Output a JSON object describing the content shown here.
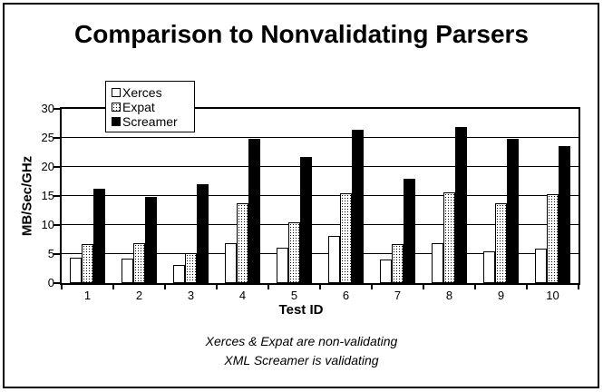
{
  "chart_data": {
    "type": "bar",
    "title": "Comparison to Nonvalidating Parsers",
    "categories": [
      "1",
      "2",
      "3",
      "4",
      "5",
      "6",
      "7",
      "8",
      "9",
      "10"
    ],
    "series": [
      {
        "name": "Xerces",
        "fill": "white",
        "values": [
          4.4,
          4.2,
          3.1,
          6.8,
          6.1,
          8.1,
          4.0,
          6.9,
          5.5,
          6.0
        ]
      },
      {
        "name": "Expat",
        "fill": "dots",
        "values": [
          6.7,
          6.8,
          5.1,
          13.7,
          10.4,
          15.5,
          6.7,
          15.6,
          13.8,
          15.3
        ]
      },
      {
        "name": "Screamer",
        "fill": "black",
        "values": [
          16.2,
          14.9,
          17.1,
          24.8,
          21.7,
          26.4,
          17.9,
          26.8,
          24.8,
          23.6
        ]
      }
    ],
    "xlabel": "Test ID",
    "ylabel": "MB/Sec/GHz",
    "ylim": [
      0,
      30
    ],
    "yticks": [
      0,
      5,
      10,
      15,
      20,
      25,
      30
    ],
    "grid": true,
    "legend_position": "top-left",
    "colors": {
      "bar_outline": "#000000",
      "bar_solid": "#000000",
      "background": "#ffffff"
    }
  },
  "footnotes": {
    "line1": "Xerces & Expat are non-validating",
    "line2": "XML Screamer is validating"
  }
}
